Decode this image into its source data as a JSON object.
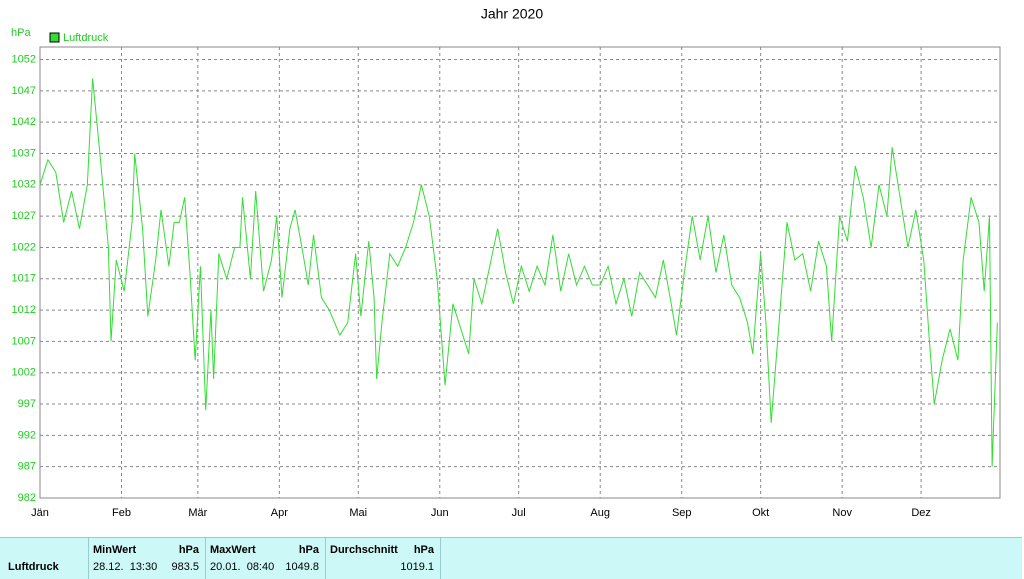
{
  "chart_data": {
    "type": "line",
    "title": "Jahr 2020",
    "y_label": "hPa",
    "x": [
      0,
      3,
      6,
      9,
      12,
      15,
      18,
      20,
      23,
      26,
      27,
      29,
      32,
      35,
      36,
      39,
      41,
      44,
      46,
      49,
      51,
      53,
      55,
      57,
      59,
      61,
      63,
      65,
      66,
      68,
      71,
      74,
      76,
      77,
      80,
      82,
      85,
      88,
      90,
      92,
      95,
      97,
      100,
      102,
      104,
      107,
      110,
      112,
      114,
      117,
      120,
      122,
      125,
      127,
      128,
      130,
      133,
      136,
      139,
      142,
      145,
      148,
      151,
      154,
      157,
      160,
      163,
      165,
      168,
      171,
      174,
      177,
      180,
      183,
      186,
      189,
      192,
      195,
      198,
      201,
      204,
      207,
      210,
      213,
      216,
      219,
      222,
      225,
      228,
      231,
      234,
      237,
      240,
      242,
      245,
      248,
      251,
      254,
      257,
      260,
      263,
      266,
      269,
      271,
      274,
      276,
      278,
      281,
      284,
      287,
      290,
      293,
      296,
      299,
      301,
      304,
      307,
      310,
      313,
      316,
      319,
      322,
      324,
      327,
      330,
      333,
      336,
      338,
      340,
      343,
      346,
      349,
      351,
      354,
      357,
      359,
      361,
      362,
      364
    ],
    "series": [
      {
        "name": "Luftdruck",
        "color": "#33dd33",
        "values": [
          1032,
          1036,
          1034,
          1026,
          1031,
          1025,
          1032,
          1049,
          1036,
          1022,
          1007,
          1020,
          1015,
          1026,
          1037,
          1025,
          1011,
          1020,
          1028,
          1019,
          1026,
          1026,
          1030,
          1018,
          1004,
          1019,
          996,
          1012,
          1001,
          1021,
          1017,
          1022,
          1022,
          1030,
          1017,
          1031,
          1015,
          1020,
          1027,
          1014,
          1025,
          1028,
          1021,
          1016,
          1024,
          1014,
          1012,
          1010,
          1008,
          1010,
          1021,
          1011,
          1023,
          1014,
          1001,
          1010,
          1021,
          1019,
          1022,
          1026,
          1032,
          1027,
          1017,
          1000,
          1013,
          1009,
          1005,
          1017,
          1013,
          1019,
          1025,
          1018,
          1013,
          1019,
          1015,
          1019,
          1016,
          1024,
          1015,
          1021,
          1016,
          1019,
          1016,
          1016,
          1019,
          1013,
          1017,
          1011,
          1018,
          1016,
          1014,
          1020,
          1013,
          1008,
          1018,
          1027,
          1020,
          1027,
          1018,
          1024,
          1016,
          1014,
          1010,
          1005,
          1021,
          1010,
          994,
          1010,
          1026,
          1020,
          1021,
          1015,
          1023,
          1019,
          1007,
          1027,
          1023,
          1035,
          1030,
          1022,
          1032,
          1027,
          1038,
          1030,
          1022,
          1028,
          1020,
          1008,
          997,
          1004,
          1009,
          1004,
          1020,
          1030,
          1026,
          1015,
          1027,
          987,
          1010
        ]
      }
    ],
    "xlim": [
      0,
      365
    ],
    "xticks": [
      {
        "value": 0,
        "label": "Jän"
      },
      {
        "value": 31,
        "label": "Feb"
      },
      {
        "value": 60,
        "label": "Mär"
      },
      {
        "value": 91,
        "label": "Apr"
      },
      {
        "value": 121,
        "label": "Mai"
      },
      {
        "value": 152,
        "label": "Jun"
      },
      {
        "value": 182,
        "label": "Jul"
      },
      {
        "value": 213,
        "label": "Aug"
      },
      {
        "value": 244,
        "label": "Sep"
      },
      {
        "value": 274,
        "label": "Okt"
      },
      {
        "value": 305,
        "label": "Nov"
      },
      {
        "value": 335,
        "label": "Dez"
      }
    ],
    "ylim": [
      982,
      1054
    ],
    "yticks": [
      982,
      987,
      992,
      997,
      1002,
      1007,
      1012,
      1017,
      1022,
      1027,
      1032,
      1037,
      1042,
      1047,
      1052
    ],
    "grid": true
  },
  "table": {
    "groups": [
      {
        "title": "MinWert",
        "unit": "hPa"
      },
      {
        "title": "MaxWert",
        "unit": "hPa"
      },
      {
        "title": "Durchschnitt",
        "unit": "hPa"
      }
    ],
    "rows": [
      {
        "label": "Luftdruck",
        "cells": [
          "28.12.  13:30",
          "983.5",
          "20.01.  08:40",
          "1049.8",
          "1019.1"
        ]
      }
    ]
  }
}
